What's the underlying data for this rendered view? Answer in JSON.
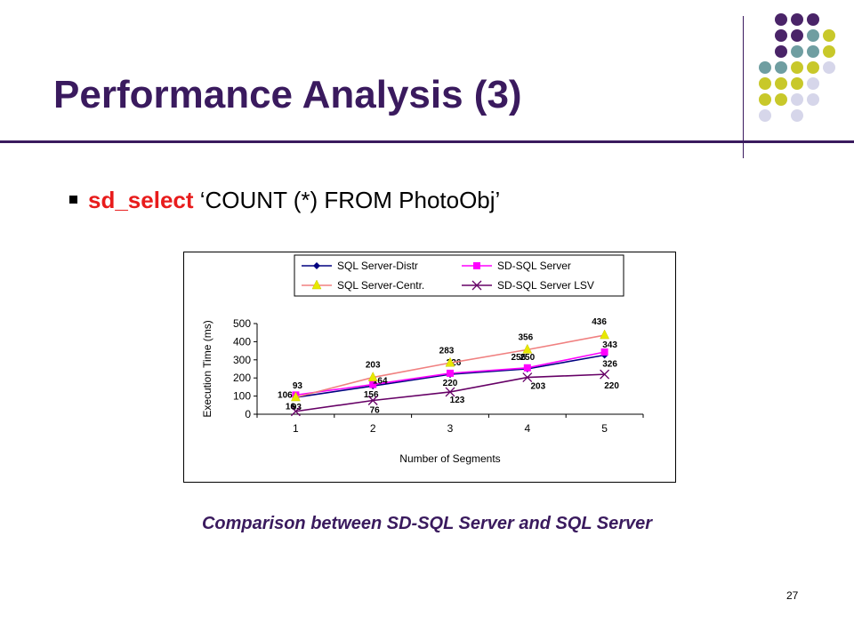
{
  "slide": {
    "title": "Performance Analysis (3)",
    "bullet_keyword": "sd_select",
    "bullet_rest": " ‘COUNT (*) FROM PhotoObj’",
    "caption": "Comparison between SD-SQL Server and SQL Server",
    "page_number": "27"
  },
  "colors": {
    "title": "#3a1a5e",
    "keyword": "#e81c1c",
    "dot_purple": "#4a2468",
    "dot_teal": "#6f9ea1",
    "dot_yellow": "#c8c82a",
    "dot_lavender": "#d6d6ea"
  },
  "chart_data": {
    "type": "line",
    "categories": [
      "1",
      "2",
      "3",
      "4",
      "5"
    ],
    "xlabel": "Number of Segments",
    "ylabel": "Execution Time (ms)",
    "ylim": [
      0,
      500
    ],
    "yticks": [
      "0",
      "100",
      "200",
      "300",
      "400",
      "500"
    ],
    "grid": false,
    "legend": "top",
    "series": [
      {
        "name": "SQL Server-Distr",
        "color": "#000080",
        "marker": "diamond",
        "values": [
          93,
          156,
          220,
          250,
          326
        ]
      },
      {
        "name": "SD-SQL Server",
        "color": "#ff00ff",
        "marker": "square",
        "values": [
          106,
          164,
          226,
          256,
          343
        ]
      },
      {
        "name": "SQL Server-Centr.",
        "color": "#f08080",
        "marker": "triangle",
        "values": [
          93,
          203,
          283,
          356,
          436
        ]
      },
      {
        "name": "SD-SQL Server LSV",
        "color": "#660066",
        "marker": "x",
        "values": [
          16,
          76,
          123,
          203,
          220
        ]
      }
    ]
  }
}
